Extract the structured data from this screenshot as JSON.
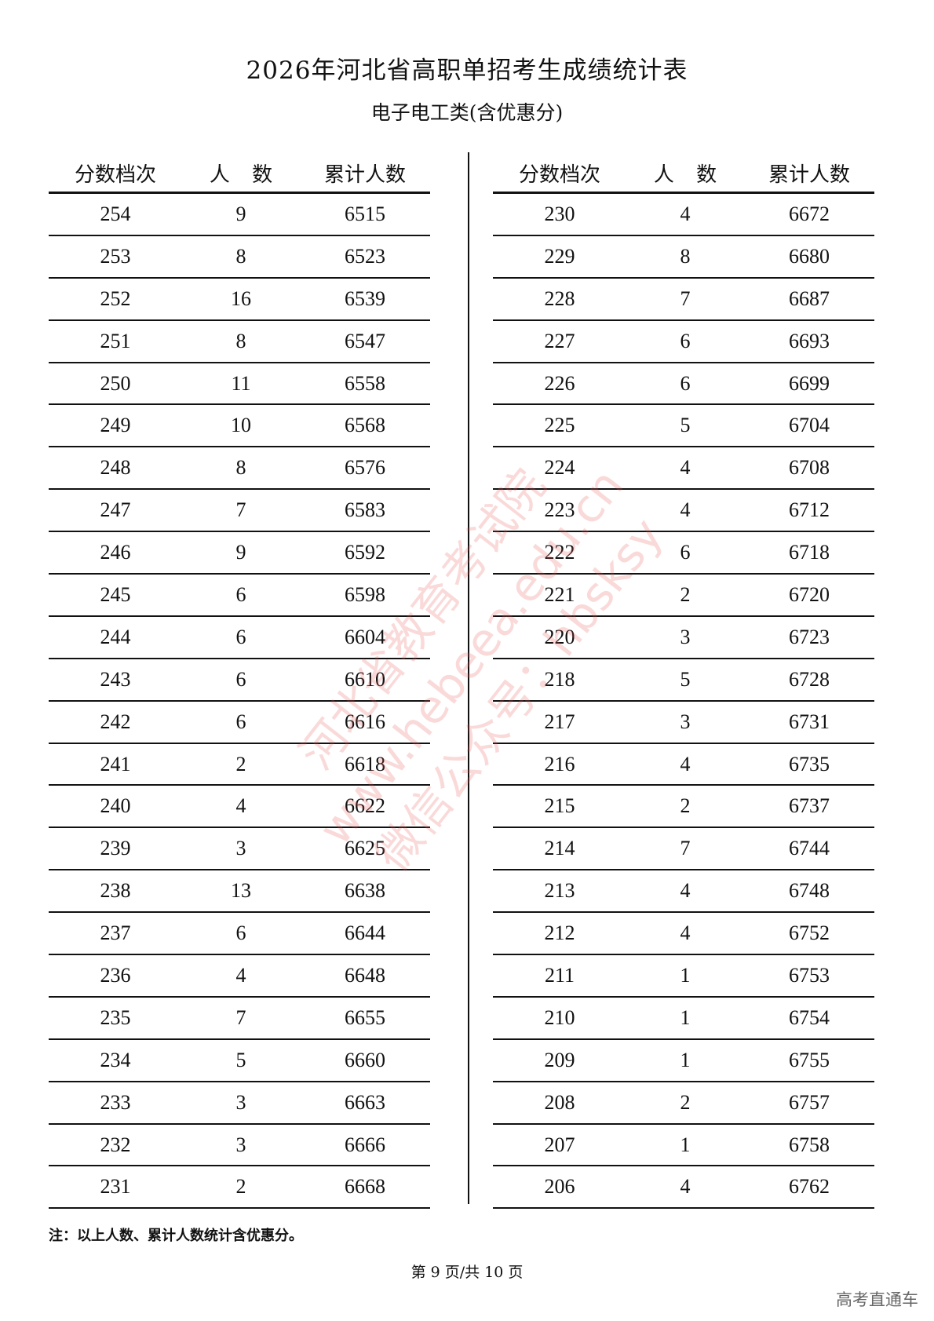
{
  "title": "2026年河北省高职单招考生成绩统计表",
  "subtitle": "电子电工类(含优惠分)",
  "headers": [
    "分数档次",
    "人 数",
    "累计人数"
  ],
  "left_rows": [
    [
      "254",
      "9",
      "6515"
    ],
    [
      "253",
      "8",
      "6523"
    ],
    [
      "252",
      "16",
      "6539"
    ],
    [
      "251",
      "8",
      "6547"
    ],
    [
      "250",
      "11",
      "6558"
    ],
    [
      "249",
      "10",
      "6568"
    ],
    [
      "248",
      "8",
      "6576"
    ],
    [
      "247",
      "7",
      "6583"
    ],
    [
      "246",
      "9",
      "6592"
    ],
    [
      "245",
      "6",
      "6598"
    ],
    [
      "244",
      "6",
      "6604"
    ],
    [
      "243",
      "6",
      "6610"
    ],
    [
      "242",
      "6",
      "6616"
    ],
    [
      "241",
      "2",
      "6618"
    ],
    [
      "240",
      "4",
      "6622"
    ],
    [
      "239",
      "3",
      "6625"
    ],
    [
      "238",
      "13",
      "6638"
    ],
    [
      "237",
      "6",
      "6644"
    ],
    [
      "236",
      "4",
      "6648"
    ],
    [
      "235",
      "7",
      "6655"
    ],
    [
      "234",
      "5",
      "6660"
    ],
    [
      "233",
      "3",
      "6663"
    ],
    [
      "232",
      "3",
      "6666"
    ],
    [
      "231",
      "2",
      "6668"
    ]
  ],
  "right_rows": [
    [
      "230",
      "4",
      "6672"
    ],
    [
      "229",
      "8",
      "6680"
    ],
    [
      "228",
      "7",
      "6687"
    ],
    [
      "227",
      "6",
      "6693"
    ],
    [
      "226",
      "6",
      "6699"
    ],
    [
      "225",
      "5",
      "6704"
    ],
    [
      "224",
      "4",
      "6708"
    ],
    [
      "223",
      "4",
      "6712"
    ],
    [
      "222",
      "6",
      "6718"
    ],
    [
      "221",
      "2",
      "6720"
    ],
    [
      "220",
      "3",
      "6723"
    ],
    [
      "218",
      "5",
      "6728"
    ],
    [
      "217",
      "3",
      "6731"
    ],
    [
      "216",
      "4",
      "6735"
    ],
    [
      "215",
      "2",
      "6737"
    ],
    [
      "214",
      "7",
      "6744"
    ],
    [
      "213",
      "4",
      "6748"
    ],
    [
      "212",
      "4",
      "6752"
    ],
    [
      "211",
      "1",
      "6753"
    ],
    [
      "210",
      "1",
      "6754"
    ],
    [
      "209",
      "1",
      "6755"
    ],
    [
      "208",
      "2",
      "6757"
    ],
    [
      "207",
      "1",
      "6758"
    ],
    [
      "206",
      "4",
      "6762"
    ]
  ],
  "note": "注：以上人数、累计人数统计含优惠分。",
  "page_number": "第 9 页/共 10 页",
  "brand": "高考直通车",
  "watermark": [
    "河北省教育考试院",
    "www.hebeea.edu.cn",
    "微信公众号：hbsksy"
  ]
}
